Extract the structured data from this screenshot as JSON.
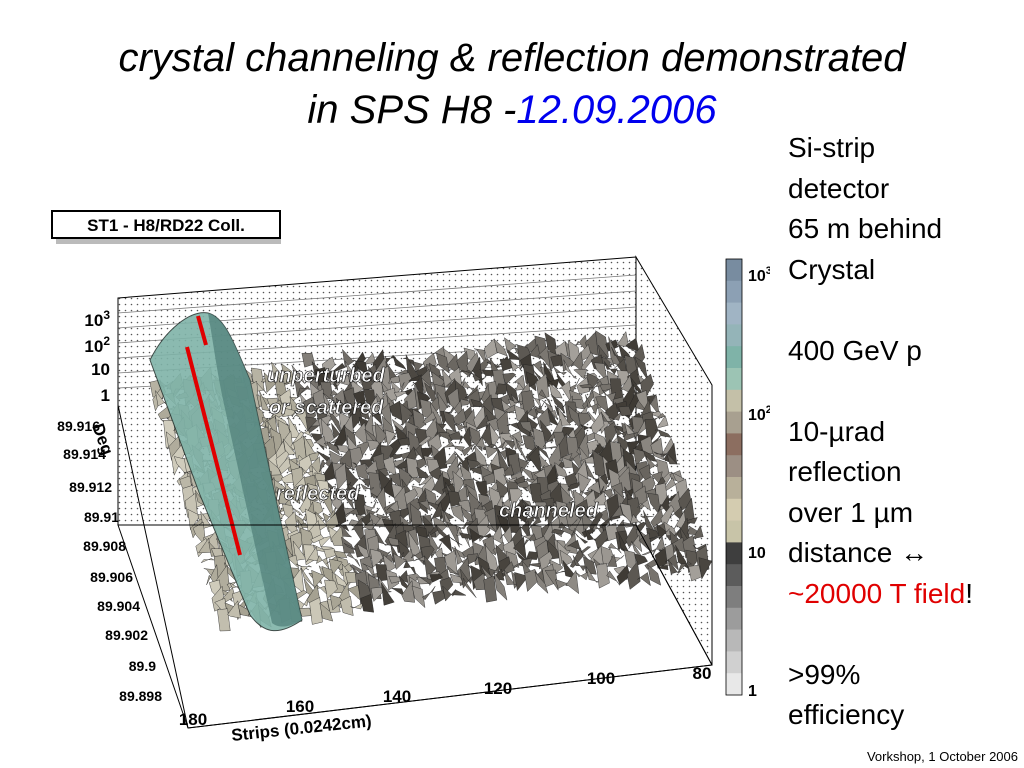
{
  "title": {
    "line1": "crystal channeling & reflection demonstrated",
    "line2_prefix": "in SPS H8 -",
    "line2_date": "12.09.2006"
  },
  "plot": {
    "box_label": "ST1 - H8/RD22 Coll.",
    "x_axis_label": "Strips (0.0242cm)",
    "x_ticks": [
      "180",
      "160",
      "140",
      "120",
      "100",
      "80"
    ],
    "y_axis_label": "Deg",
    "y_ticks": [
      "89.916",
      "89.914",
      "89.912",
      "89.91",
      "89.908",
      "89.906",
      "89.904",
      "89.902",
      "89.9",
      "89.898"
    ],
    "z_ticks": [
      "1",
      "10",
      "10",
      "10"
    ],
    "z_tick_exponents": [
      "",
      "",
      "2",
      "3"
    ],
    "color_scale_ticks": [
      "1",
      "10",
      "10",
      "10"
    ],
    "color_scale_exponents": [
      "",
      "",
      "2",
      "3"
    ],
    "labels": {
      "unperturbed_line1": "unperturbed",
      "unperturbed_line2": "or scattered",
      "reflected": "reflected",
      "channeled": "channeled"
    },
    "colors": {
      "reflection_line": "#e00000",
      "surface_dark": "#5a5a5a",
      "surface_light": "#c8c4b8",
      "peak_teal": "#7fb3a8"
    }
  },
  "side_panel": {
    "detector_line1": "Si-strip",
    "detector_line2": "detector",
    "detector_line3": "65 m behind",
    "detector_line4": "Crystal",
    "beam": "400 GeV p",
    "reflection_line1": "10-µrad",
    "reflection_line2": "reflection",
    "reflection_line3": "over 1 µm",
    "reflection_line4": "distance ↔",
    "field_text": "~20000 T field",
    "field_suffix": "!",
    "efficiency_line1": ">99%",
    "efficiency_line2": "efficiency"
  },
  "footer": "Vorkshop, 1 October 2006"
}
